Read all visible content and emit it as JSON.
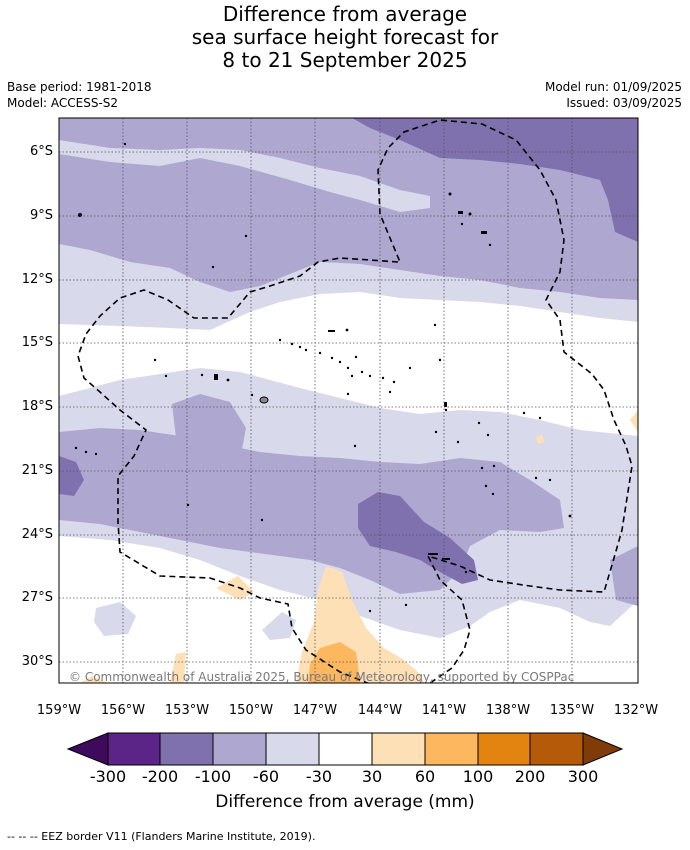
{
  "title": {
    "line1": "Difference from average",
    "line2": "sea surface height forecast for",
    "line3": "8 to 21 September 2025"
  },
  "meta": {
    "base_period": "Base period: 1981-2018",
    "model": "Model: ACCESS-S2",
    "model_run": "Model run: 01/09/2025",
    "issued": "Issued: 03/09/2025"
  },
  "map": {
    "lat_labels": [
      "6°S",
      "9°S",
      "12°S",
      "15°S",
      "18°S",
      "21°S",
      "24°S",
      "27°S",
      "30°S"
    ],
    "lon_labels": [
      "159°W",
      "156°W",
      "153°W",
      "150°W",
      "147°W",
      "144°W",
      "141°W",
      "138°W",
      "135°W",
      "132°W"
    ],
    "copyright": "© Commonwealth of Australia 2025, Bureau of Meteorology, supported by COSPPac"
  },
  "colorbar": {
    "title": "Difference from average (mm)",
    "tick_labels": [
      "-300",
      "-200",
      "-100",
      "-60",
      "-30",
      "30",
      "60",
      "100",
      "200",
      "300"
    ],
    "colors": [
      "#3d0a5c",
      "#5a2587",
      "#7f71ad",
      "#aea8d1",
      "#d9d9ec",
      "#ffffff",
      "#fee0b6",
      "#fdb75f",
      "#e2840f",
      "#b45a09",
      "#7f3b08"
    ]
  },
  "legend": {
    "eez": "--  --  -- EEZ border V11 (Flanders Marine Institute, 2019)."
  }
}
